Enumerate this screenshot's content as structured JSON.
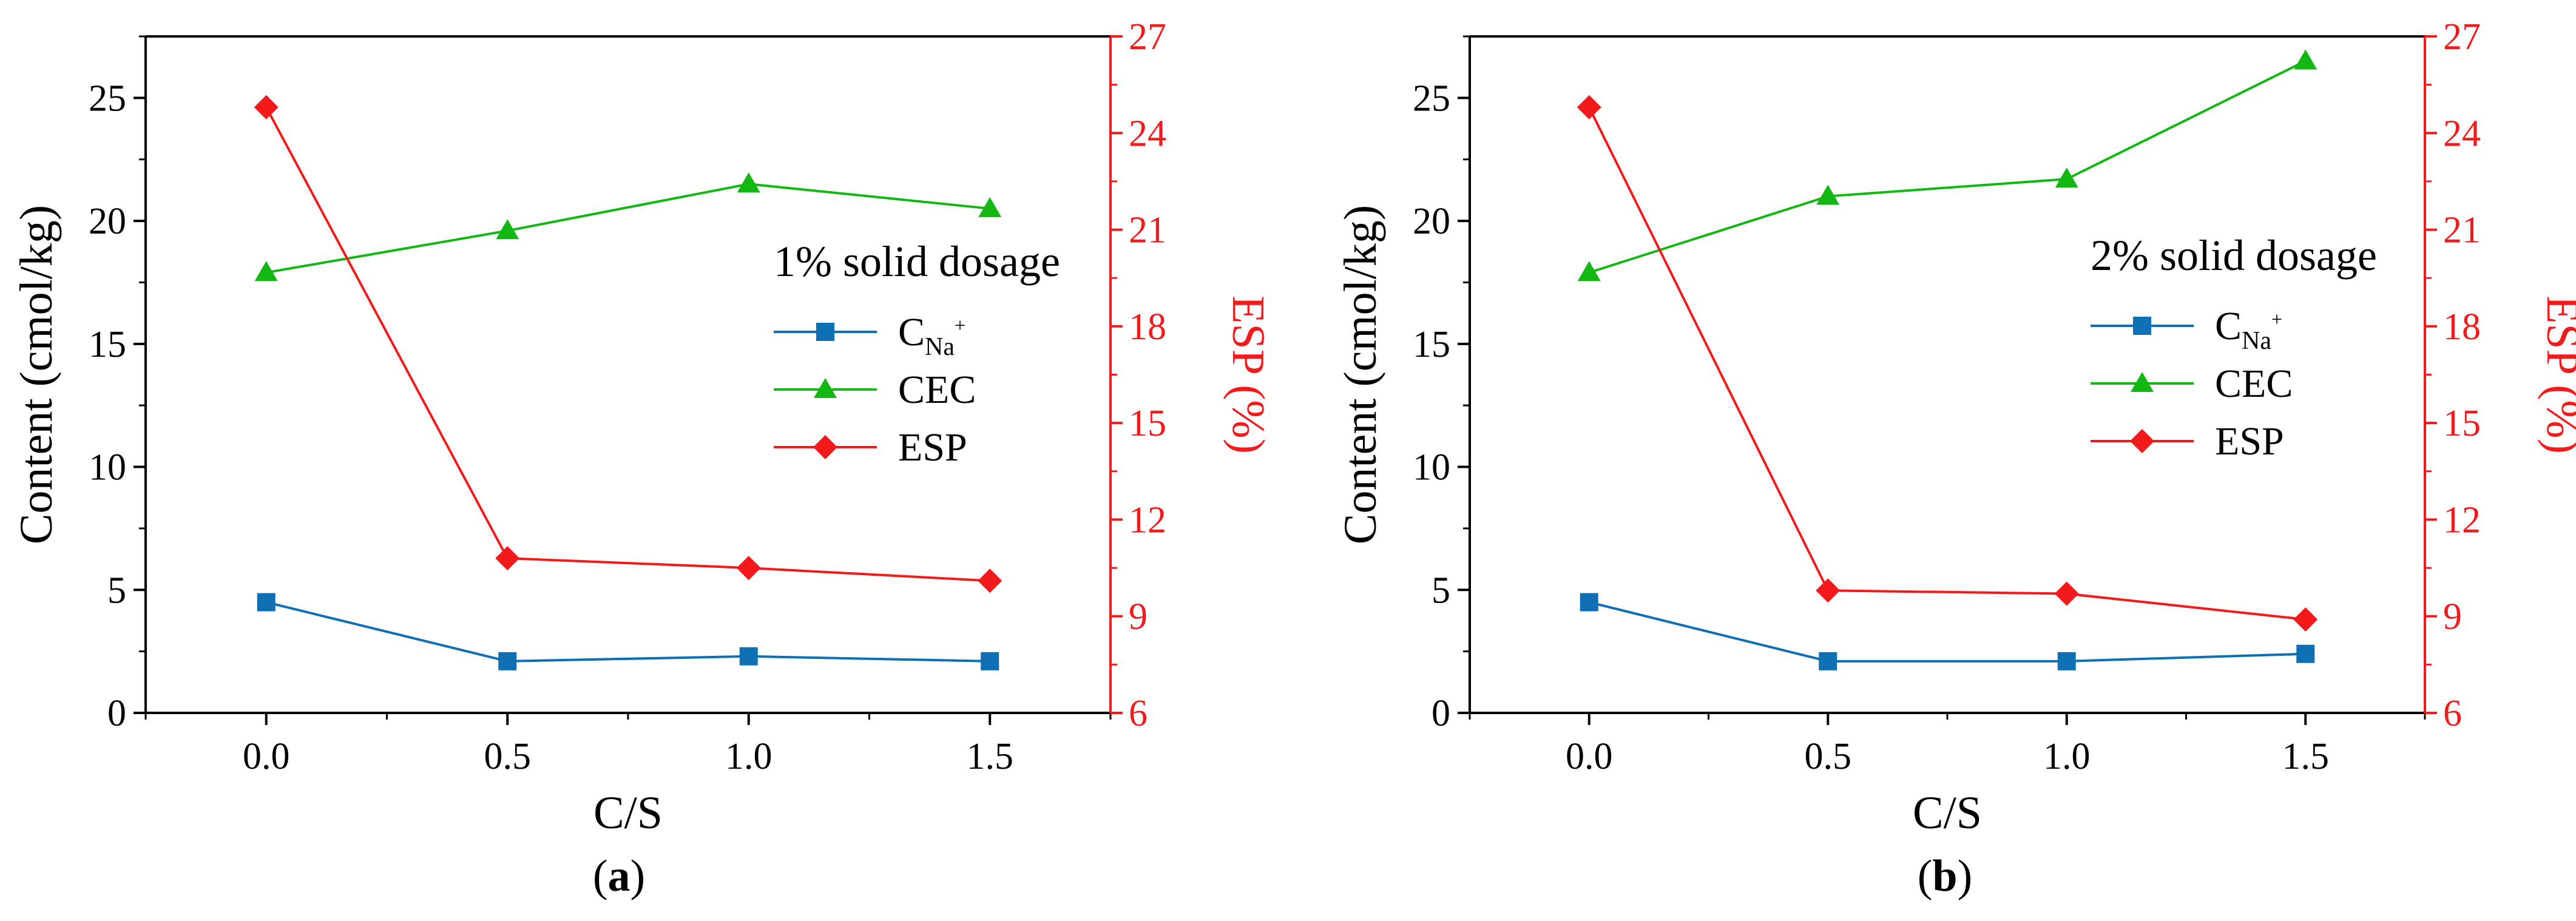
{
  "colors": {
    "cna": "#0e6fb4",
    "cec": "#12b712",
    "esp": "#f21a1a",
    "axis": "#000000"
  },
  "chart_data": [
    {
      "type": "line",
      "panel": "a",
      "caption": {
        "open": "(",
        "letter": "a",
        "close": ")"
      },
      "xlabel": "C/S",
      "ylabel": "Content (cmol/kg)",
      "y2label": "ESP (%)",
      "xlim": [
        -0.25,
        1.75
      ],
      "ylim": [
        0,
        27.5
      ],
      "y2lim": [
        6,
        27
      ],
      "x_ticks": [
        0.0,
        0.5,
        1.0,
        1.5
      ],
      "x_tick_labels": [
        "0.0",
        "0.5",
        "1.0",
        "1.5"
      ],
      "y_ticks": [
        0,
        5,
        10,
        15,
        20,
        25
      ],
      "y_tick_labels": [
        "0",
        "5",
        "10",
        "15",
        "20",
        "25"
      ],
      "y2_ticks": [
        6,
        9,
        12,
        15,
        18,
        21,
        24,
        27
      ],
      "y2_tick_labels": [
        "6",
        "9",
        "12",
        "15",
        "18",
        "21",
        "24",
        "27"
      ],
      "x": [
        0.0,
        0.5,
        1.0,
        1.5
      ],
      "legend_title": "1% solid dosage",
      "legend_position": "right",
      "series": [
        {
          "name": "C",
          "subscript": "Na",
          "superscript": "+",
          "axis": "left",
          "marker": "square",
          "values": [
            4.5,
            2.1,
            2.3,
            2.1
          ]
        },
        {
          "name": "CEC",
          "axis": "left",
          "marker": "triangle",
          "values": [
            17.9,
            19.6,
            21.5,
            20.5
          ]
        },
        {
          "name": "ESP",
          "axis": "right",
          "marker": "diamond",
          "values": [
            24.8,
            10.8,
            10.5,
            10.1
          ]
        }
      ]
    },
    {
      "type": "line",
      "panel": "b",
      "caption": {
        "open": "(",
        "letter": "b",
        "close": ")"
      },
      "xlabel": "C/S",
      "ylabel": "Content (cmol/kg)",
      "y2label": "ESP (%)",
      "xlim": [
        -0.25,
        1.75
      ],
      "ylim": [
        0,
        27.5
      ],
      "y2lim": [
        6,
        27
      ],
      "x_ticks": [
        0.0,
        0.5,
        1.0,
        1.5
      ],
      "x_tick_labels": [
        "0.0",
        "0.5",
        "1.0",
        "1.5"
      ],
      "y_ticks": [
        0,
        5,
        10,
        15,
        20,
        25
      ],
      "y_tick_labels": [
        "0",
        "5",
        "10",
        "15",
        "20",
        "25"
      ],
      "y2_ticks": [
        6,
        9,
        12,
        15,
        18,
        21,
        24,
        27
      ],
      "y2_tick_labels": [
        "6",
        "9",
        "12",
        "15",
        "18",
        "21",
        "24",
        "27"
      ],
      "x": [
        0.0,
        0.5,
        1.0,
        1.5
      ],
      "legend_title": "2% solid dosage",
      "legend_position": "right",
      "series": [
        {
          "name": "C",
          "subscript": "Na",
          "superscript": "+",
          "axis": "left",
          "marker": "square",
          "values": [
            4.5,
            2.1,
            2.1,
            2.4
          ]
        },
        {
          "name": "CEC",
          "axis": "left",
          "marker": "triangle",
          "values": [
            17.9,
            21.0,
            21.7,
            26.5
          ]
        },
        {
          "name": "ESP",
          "axis": "right",
          "marker": "diamond",
          "values": [
            24.8,
            9.8,
            9.7,
            8.9
          ]
        }
      ]
    }
  ]
}
